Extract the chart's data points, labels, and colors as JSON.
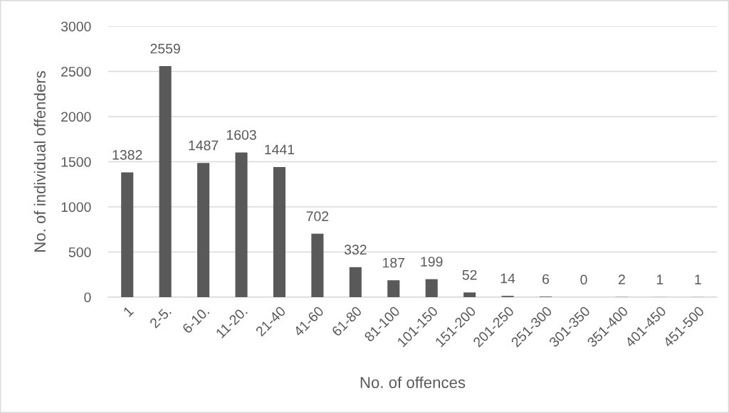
{
  "chart_data": {
    "type": "bar",
    "xlabel": "No. of offences",
    "ylabel": "No. of individual offenders",
    "categories": [
      "1",
      "2-5.",
      "6-10.",
      "11-20.",
      "21-40",
      "41-60",
      "61-80",
      "81-100",
      "101-150",
      "151-200",
      "201-250",
      "251-300",
      "301-350",
      "351-400",
      "401-450",
      "451-500"
    ],
    "values": [
      1382,
      2559,
      1487,
      1603,
      1441,
      702,
      332,
      187,
      199,
      52,
      14,
      6,
      0,
      2,
      1,
      1
    ],
    "color": "#595959",
    "ylim": [
      0,
      3000
    ],
    "yticks": [
      0,
      500,
      1000,
      1500,
      2000,
      2500,
      3000
    ],
    "grid": "y",
    "data_labels": true
  }
}
